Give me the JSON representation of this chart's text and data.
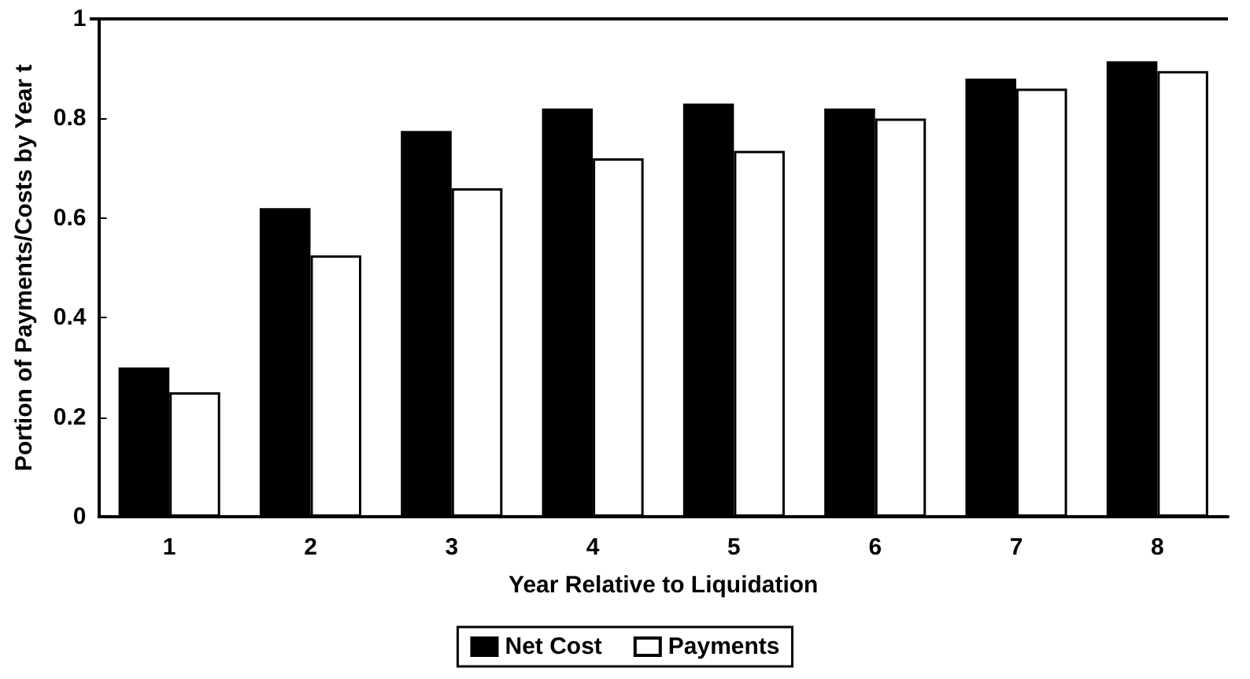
{
  "chart_data": {
    "type": "bar",
    "xlabel": "Year Relative to Liquidation",
    "ylabel": "Portion of Payments/Costs by Year t",
    "categories": [
      "1",
      "2",
      "3",
      "4",
      "5",
      "6",
      "7",
      "8"
    ],
    "series": [
      {
        "name": "Net Cost",
        "color": "#000000",
        "values": [
          0.3,
          0.62,
          0.775,
          0.82,
          0.83,
          0.82,
          0.88,
          0.915
        ]
      },
      {
        "name": "Payments",
        "color": "#ffffff",
        "values": [
          0.25,
          0.525,
          0.66,
          0.72,
          0.735,
          0.8,
          0.86,
          0.895
        ]
      }
    ],
    "ylim": [
      0,
      1
    ],
    "yticks": [
      0,
      0.2,
      0.4,
      0.6,
      0.8,
      1
    ],
    "grid": false,
    "legend": "bottom"
  }
}
